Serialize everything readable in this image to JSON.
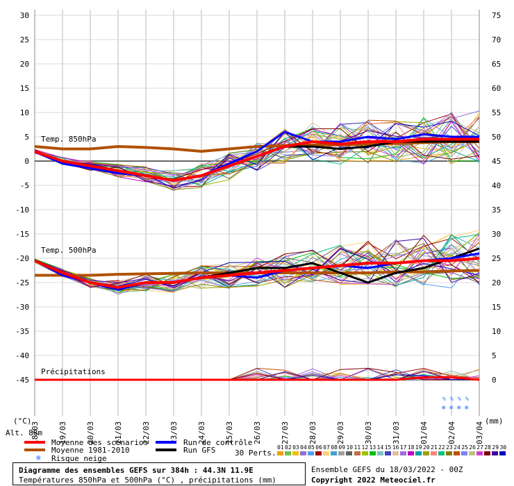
{
  "chart_data": {
    "type": "line",
    "title": "Diagramme des ensembles GEFS sur 384h : 44.3N 11.9E",
    "subtitle": "Températures 850hPa et 500hPa (°C) , précipitations (mm)",
    "left_axis": {
      "unit": "(°C)",
      "ticks": [
        30,
        25,
        20,
        15,
        10,
        5,
        0,
        -5,
        -10,
        -15,
        -20,
        -25,
        -30,
        -35,
        -40,
        -45
      ],
      "ylim": [
        -45,
        30
      ]
    },
    "right_axis": {
      "unit": "(mm)",
      "ticks": [
        75,
        70,
        65,
        60,
        55,
        50,
        45,
        40,
        35,
        30,
        25,
        20,
        15,
        10,
        5,
        0
      ],
      "ylim": [
        0,
        75
      ]
    },
    "x_ticks": [
      "18/03",
      "19/03",
      "20/03",
      "21/03",
      "22/03",
      "23/03",
      "24/03",
      "25/03",
      "26/03",
      "27/03",
      "28/03",
      "29/03",
      "30/03",
      "31/03",
      "01/04",
      "02/04",
      "03/04"
    ],
    "panel_labels": {
      "t850": "Temp. 850hPa",
      "t500": "Temp. 500hPa",
      "precip": "Précipitations"
    },
    "altitude": "Alt. 88m",
    "series": [
      {
        "name": "Moyenne des scénarios",
        "color": "#ff0000",
        "t850": [
          2,
          0,
          -1,
          -2,
          -3,
          -4,
          -3,
          -1,
          1,
          3,
          4,
          3.5,
          4,
          4,
          4.5,
          4.5,
          4.5
        ],
        "t500": [
          -20.5,
          -23,
          -25,
          -26,
          -25,
          -25,
          -24,
          -23.5,
          -23,
          -22.5,
          -22,
          -21.5,
          -21,
          -21,
          -20.5,
          -20.5,
          -20
        ],
        "precip": [
          0,
          0,
          0,
          0,
          0,
          0,
          0,
          0,
          0,
          0,
          0,
          0,
          0,
          0,
          0.5,
          0.5,
          0
        ]
      },
      {
        "name": "Moyenne 1981-2010",
        "color": "#b05000",
        "t850": [
          3,
          2.5,
          2.5,
          3,
          2.8,
          2.5,
          2,
          2.5,
          3,
          3.2,
          3.3,
          3.3,
          3.5,
          3.6,
          3.8,
          4,
          4
        ],
        "t500": [
          -23.5,
          -23.5,
          -23.5,
          -23.3,
          -23.2,
          -23.1,
          -23,
          -23,
          -23,
          -23,
          -23,
          -23,
          -23,
          -22.8,
          -22.8,
          -22.6,
          -22.5
        ]
      },
      {
        "name": "Run de contrôle",
        "color": "#0000ff",
        "t850": [
          2,
          -0.5,
          -1.5,
          -2.5,
          -3,
          -4,
          -3,
          -0.5,
          2,
          6,
          4,
          4,
          5,
          4.5,
          5.5,
          5,
          5
        ],
        "t500": [
          -20.5,
          -23.5,
          -25,
          -26.5,
          -25,
          -25,
          -24,
          -23.5,
          -24,
          -22.5,
          -22,
          -21.5,
          -22,
          -21,
          -20.5,
          -20,
          -19
        ]
      },
      {
        "name": "Run GFS",
        "color": "#000000",
        "t850": [
          2,
          -0.5,
          -1.5,
          -2.5,
          -3,
          -4,
          -3,
          -1,
          1,
          3,
          3,
          2.5,
          3,
          4,
          4,
          4,
          4
        ],
        "t500": [
          -20.5,
          -23,
          -25,
          -26,
          -25,
          -25,
          -24,
          -23,
          -22,
          -22,
          -21,
          -23,
          -25,
          -23,
          -22,
          -20,
          -18
        ]
      }
    ],
    "perturbation_colors": [
      "#f0a000",
      "#70c050",
      "#f0c000",
      "#9070d0",
      "#50a0f0",
      "#a00000",
      "#ffd070",
      "#40a0d0",
      "#a0a0a0",
      "#606060",
      "#c07040",
      "#a0c000",
      "#00c000",
      "#80c0c0",
      "#4040c0",
      "#e0c0a0",
      "#a070e0",
      "#c000c0",
      "#00a0a0",
      "#a0a000",
      "#ff8080",
      "#00c080",
      "#808000",
      "#c05000",
      "#8080f0",
      "#c0c080",
      "#d040d0",
      "#800000",
      "#4000a0",
      "#0000c0"
    ]
  },
  "legend": {
    "mean": "Moyenne des scénarios",
    "climo": "Moyenne 1981-2010",
    "snow": "Risque neige",
    "control": "Run de contrôle",
    "gfs": "Run GFS",
    "perts_label": "30 Perts.",
    "pert_numbers": [
      "01",
      "02",
      "03",
      "04",
      "05",
      "06",
      "07",
      "08",
      "09",
      "10",
      "11",
      "12",
      "13",
      "14",
      "15",
      "16",
      "17",
      "18",
      "19",
      "20",
      "21",
      "22",
      "23",
      "24",
      "25",
      "26",
      "27",
      "28",
      "29",
      "30"
    ]
  },
  "footer": {
    "title": "Diagramme des ensembles GEFS sur 384h : 44.3N 11.9E",
    "subtitle": "Températures 850hPa et 500hPa (°C) , précipitations (mm)",
    "run": "Ensemble GEFS du 18/03/2022 - 00Z",
    "copyright": "Copyright 2022 Meteociel.fr"
  },
  "snow_glyph": "❄",
  "snow_flag_text": "%"
}
